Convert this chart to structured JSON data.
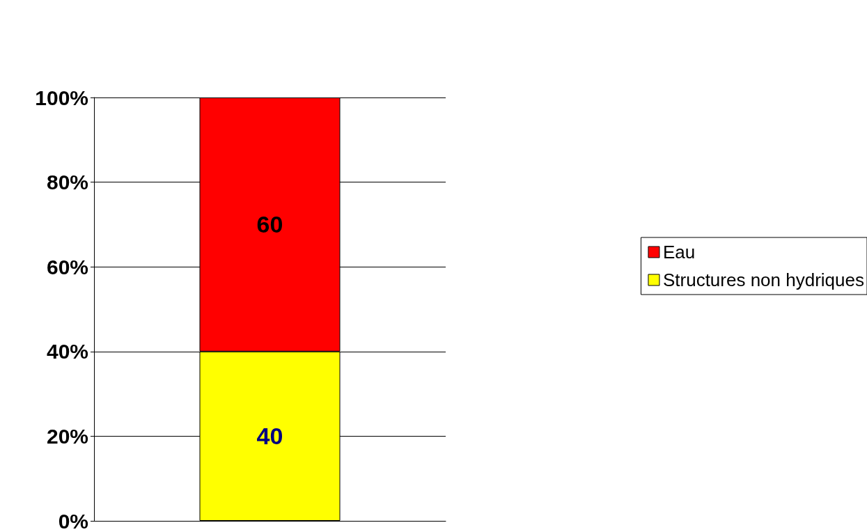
{
  "chart_data": {
    "type": "bar",
    "stacked": true,
    "categories": [
      null
    ],
    "series": [
      {
        "name": "Structures non hydriques",
        "color": "#ffff00",
        "values": [
          40
        ]
      },
      {
        "name": "Eau",
        "color": "#ff0000",
        "values": [
          60
        ]
      }
    ],
    "ylim": [
      0,
      100
    ],
    "yticks": [
      {
        "value": 0,
        "label": "0%"
      },
      {
        "value": 20,
        "label": "20%"
      },
      {
        "value": 40,
        "label": "40%"
      },
      {
        "value": 60,
        "label": "60%"
      },
      {
        "value": 80,
        "label": "80%"
      },
      {
        "value": 100,
        "label": "100%"
      }
    ],
    "grid": "y",
    "legend": "right",
    "data_labels": true
  }
}
